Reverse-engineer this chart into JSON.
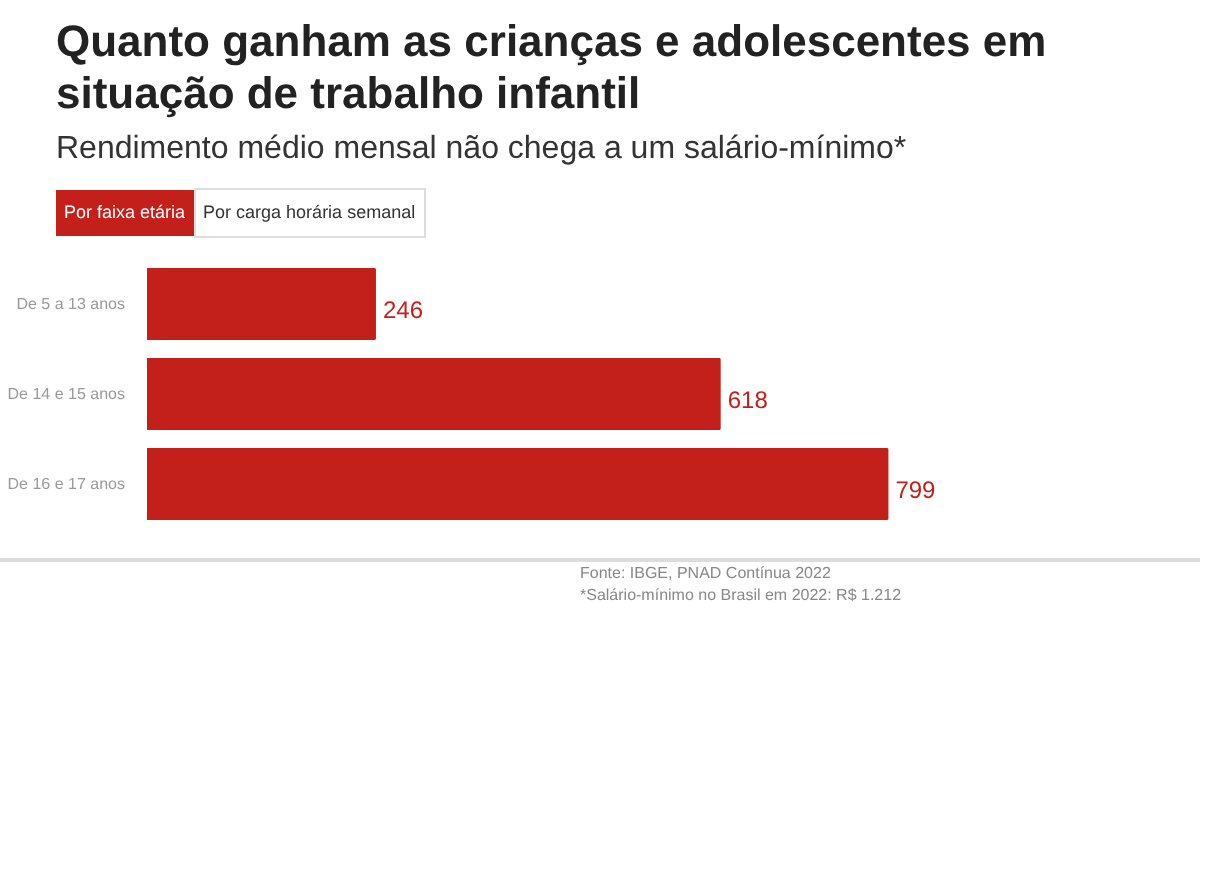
{
  "chart_data": {
    "type": "bar",
    "orientation": "horizontal",
    "title": "Quanto ganham as crianças e adolescentes em situação de trabalho infantil",
    "subtitle": "Rendimento médio mensal não chega a um salário-mínimo*",
    "categories": [
      "De 5 a 13 anos",
      "De 14 e 15 anos",
      "De 16 e 17 anos"
    ],
    "values": [
      246,
      618,
      799
    ],
    "color": "#c4201b",
    "data_labels": true,
    "annotations": [
      "Por faixa etária",
      "Por carga horária semanal",
      "Fonte: IBGE, PNAD Contínua 2022",
      "*Salário-mínimo no Brasil em 2022: R$ 1.212"
    ]
  }
}
